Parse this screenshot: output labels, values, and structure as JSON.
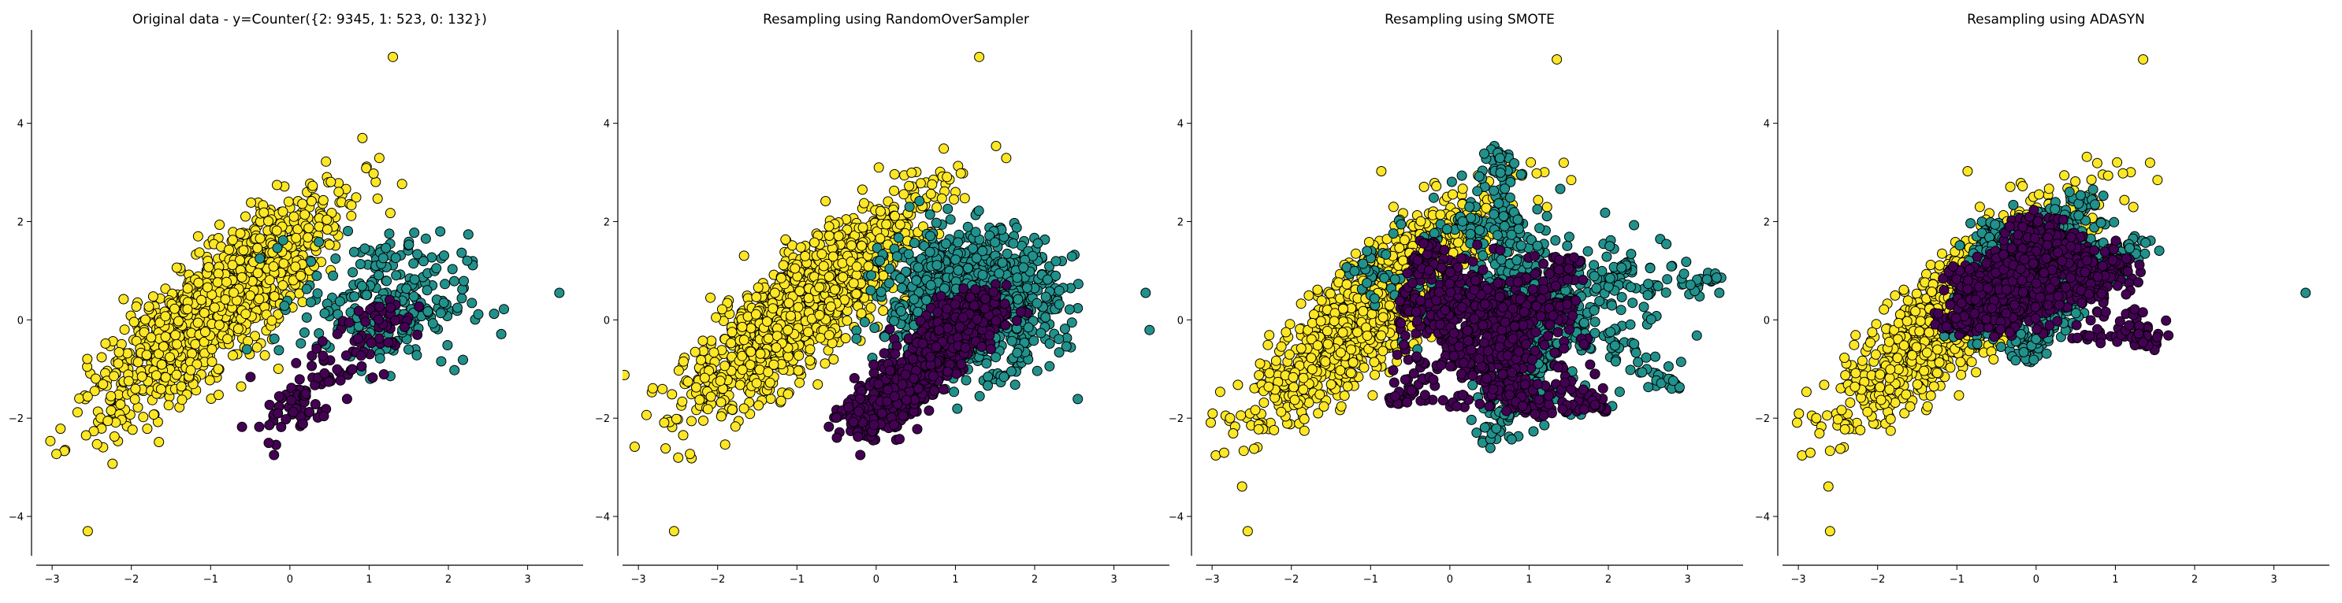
{
  "colors": {
    "class_0": "#440154",
    "class_1": "#21918c",
    "class_2": "#fde725",
    "edge": "#000000"
  },
  "chart_data": [
    {
      "type": "scatter",
      "title": "Original data - y=Counter({2: 9345, 1: 523, 0: 132})",
      "xlim": [
        -3.2,
        3.7
      ],
      "ylim": [
        -4.8,
        5.9
      ],
      "xticks": [
        -3,
        -2,
        -1,
        0,
        1,
        2,
        3
      ],
      "yticks": [
        -4,
        -2,
        0,
        2,
        4
      ],
      "series": [
        {
          "class": 2,
          "color": "#fde725",
          "count": 9345,
          "shape": "ellipse",
          "center": [
            -0.9,
            0.3
          ],
          "major": 2.9,
          "minor": 0.55,
          "angle_deg": 58
        },
        {
          "class": 1,
          "color": "#21918c",
          "count": 523,
          "shape": "blob",
          "center": [
            1.2,
            0.4
          ],
          "spread": [
            0.75,
            0.95
          ]
        },
        {
          "class": 0,
          "color": "#440154",
          "count": 132,
          "shape": "band",
          "from": [
            -0.2,
            -2.2
          ],
          "to": [
            1.4,
            0.4
          ],
          "width": 0.2
        }
      ],
      "outliers": [
        {
          "x": -2.55,
          "y": -4.3,
          "class": 2
        },
        {
          "x": 1.3,
          "y": 5.35,
          "class": 2
        },
        {
          "x": 3.4,
          "y": 0.55,
          "class": 1
        },
        {
          "x": -0.2,
          "y": -2.75,
          "class": 0
        }
      ],
      "legend": "none",
      "grid": false
    },
    {
      "type": "scatter",
      "title": "Resampling using RandomOverSampler",
      "xlim": [
        -3.2,
        3.7
      ],
      "ylim": [
        -4.8,
        5.9
      ],
      "xticks": [
        -3,
        -2,
        -1,
        0,
        1,
        2,
        3
      ],
      "yticks": [
        -4,
        -2,
        0,
        2,
        4
      ],
      "series": [
        {
          "class": 2,
          "color": "#fde725",
          "count": 9345,
          "shape": "ellipse",
          "center": [
            -0.9,
            0.3
          ],
          "major": 2.9,
          "minor": 0.55,
          "angle_deg": 58
        },
        {
          "class": 1,
          "color": "#21918c",
          "count": 9345,
          "shape": "blob",
          "center": [
            1.2,
            0.4
          ],
          "spread": [
            0.75,
            0.95
          ]
        },
        {
          "class": 0,
          "color": "#440154",
          "count": 9345,
          "shape": "band",
          "from": [
            -0.2,
            -2.2
          ],
          "to": [
            1.4,
            0.4
          ],
          "width": 0.2
        }
      ],
      "outliers": [
        {
          "x": -2.55,
          "y": -4.3,
          "class": 2
        },
        {
          "x": 1.3,
          "y": 5.35,
          "class": 2
        },
        {
          "x": 3.4,
          "y": 0.55,
          "class": 1
        },
        {
          "x": -0.2,
          "y": -2.75,
          "class": 0
        }
      ],
      "legend": "none",
      "grid": false
    },
    {
      "type": "scatter",
      "title": "Resampling using SMOTE",
      "xlim": [
        -3.2,
        3.7
      ],
      "ylim": [
        -4.8,
        5.9
      ],
      "xticks": [
        -3,
        -2,
        -1,
        0,
        1,
        2,
        3
      ],
      "yticks": [
        -4,
        -2,
        0,
        2,
        4
      ],
      "series": [
        {
          "class": 2,
          "color": "#fde725",
          "count": 9345,
          "shape": "ellipse",
          "center": [
            -0.9,
            0.3
          ],
          "major": 2.9,
          "minor": 0.55,
          "angle_deg": 58
        },
        {
          "class": 1,
          "color": "#21918c",
          "count": 9345,
          "shape": "web",
          "center": [
            1.1,
            0.6
          ],
          "spread": [
            1.7,
            1.9
          ]
        },
        {
          "class": 0,
          "color": "#440154",
          "count": 9345,
          "shape": "web",
          "center": [
            0.4,
            0.2
          ],
          "spread": [
            1.2,
            2.1
          ]
        }
      ],
      "outliers": [
        {
          "x": -2.55,
          "y": -4.3,
          "class": 2
        },
        {
          "x": 1.35,
          "y": 5.3,
          "class": 2
        },
        {
          "x": 3.4,
          "y": 0.55,
          "class": 1
        }
      ],
      "legend": "none",
      "grid": false
    },
    {
      "type": "scatter",
      "title": "Resampling using ADASYN",
      "xlim": [
        -3.2,
        3.7
      ],
      "ylim": [
        -4.8,
        5.9
      ],
      "xticks": [
        -3,
        -2,
        -1,
        0,
        1,
        2,
        3
      ],
      "yticks": [
        -4,
        -2,
        0,
        2,
        4
      ],
      "series": [
        {
          "class": 2,
          "color": "#fde725",
          "count": 9345,
          "shape": "ellipse",
          "center": [
            -0.9,
            0.3
          ],
          "major": 2.9,
          "minor": 0.55,
          "angle_deg": 58
        },
        {
          "class": 1,
          "color": "#21918c",
          "count": 9345,
          "shape": "wedge",
          "center": [
            0.0,
            0.9
          ],
          "spread": [
            1.8,
            1.9
          ]
        },
        {
          "class": 0,
          "color": "#440154",
          "count": 9345,
          "shape": "wedge",
          "center": [
            -0.1,
            0.8
          ],
          "spread": [
            1.5,
            1.7
          ]
        }
      ],
      "outliers": [
        {
          "x": -2.6,
          "y": -4.3,
          "class": 2
        },
        {
          "x": 1.35,
          "y": 5.3,
          "class": 2
        },
        {
          "x": 3.4,
          "y": 0.55,
          "class": 1
        }
      ],
      "legend": "none",
      "grid": false
    }
  ]
}
